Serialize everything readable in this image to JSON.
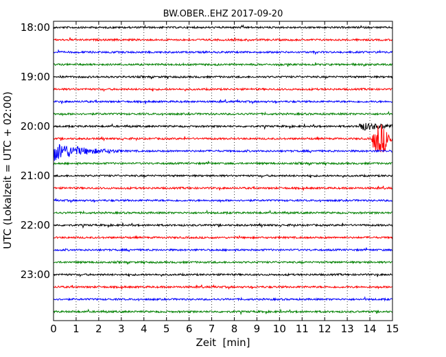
{
  "chart_data": {
    "type": "line",
    "title": "BW.OBER..EHZ 2017-09-20",
    "xlabel": "Zeit  [min]",
    "ylabel": "UTC (Lokalzeit = UTC + 02:00)",
    "xlim": [
      0,
      15
    ],
    "x_ticks": [
      "0",
      "1",
      "2",
      "3",
      "4",
      "5",
      "6",
      "7",
      "8",
      "9",
      "10",
      "11",
      "12",
      "13",
      "14",
      "15"
    ],
    "y_tick_labels": [
      "18:00",
      "19:00",
      "20:00",
      "21:00",
      "22:00",
      "23:00"
    ],
    "y_tick_trace_index": [
      0,
      4,
      8,
      12,
      16,
      20
    ],
    "grid_x": "dotted",
    "traces_per_hour": 4,
    "colors": [
      "#000000",
      "#ff0000",
      "#0000ff",
      "#008000"
    ],
    "trace_starts": [
      "18:00",
      "18:15",
      "18:30",
      "18:45",
      "19:00",
      "19:15",
      "19:30",
      "19:45",
      "20:00",
      "20:15",
      "20:30",
      "20:45",
      "21:00",
      "21:15",
      "21:30",
      "21:45",
      "22:00",
      "22:15",
      "22:30",
      "22:45",
      "23:00",
      "23:15",
      "23:30",
      "23:45"
    ],
    "events": [
      {
        "trace": "20:15",
        "start_min": 14.1,
        "end_min": 15.0,
        "amplitude": "large"
      },
      {
        "trace": "20:30",
        "start_min": 0.0,
        "end_min": 3.0,
        "amplitude": "large"
      },
      {
        "trace": "20:00",
        "start_min": 13.5,
        "end_min": 15.0,
        "amplitude": "medium"
      }
    ]
  }
}
